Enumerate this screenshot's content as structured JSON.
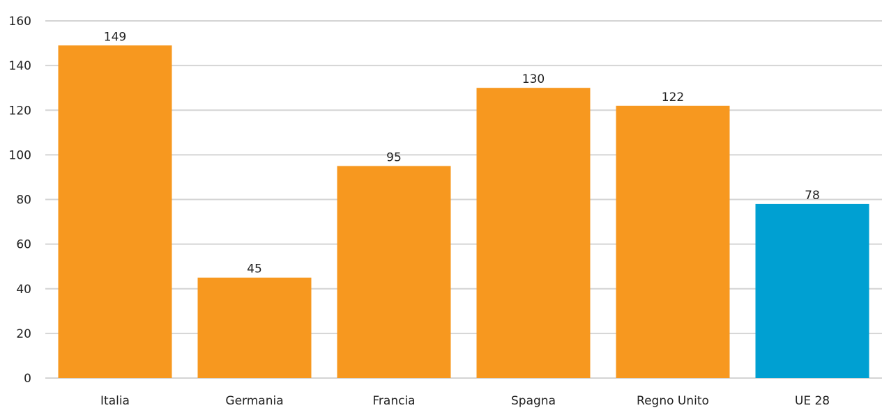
{
  "chart_data": {
    "type": "bar",
    "categories": [
      "Italia",
      "Germania",
      "Francia",
      "Spagna",
      "Regno Unito",
      "UE 28"
    ],
    "values": [
      149,
      45,
      95,
      130,
      122,
      78
    ],
    "data_labels": [
      "149",
      "45",
      "95",
      "130",
      "122",
      "78"
    ],
    "bar_colors": [
      "#F7981F",
      "#F7981F",
      "#F7981F",
      "#F7981F",
      "#F7981F",
      "#00A0D2"
    ],
    "yticks": [
      0,
      20,
      40,
      60,
      80,
      100,
      120,
      140,
      160
    ],
    "ylim": [
      0,
      160
    ],
    "grid": true,
    "legend": "none",
    "title": "",
    "xlabel": "",
    "ylabel": ""
  }
}
